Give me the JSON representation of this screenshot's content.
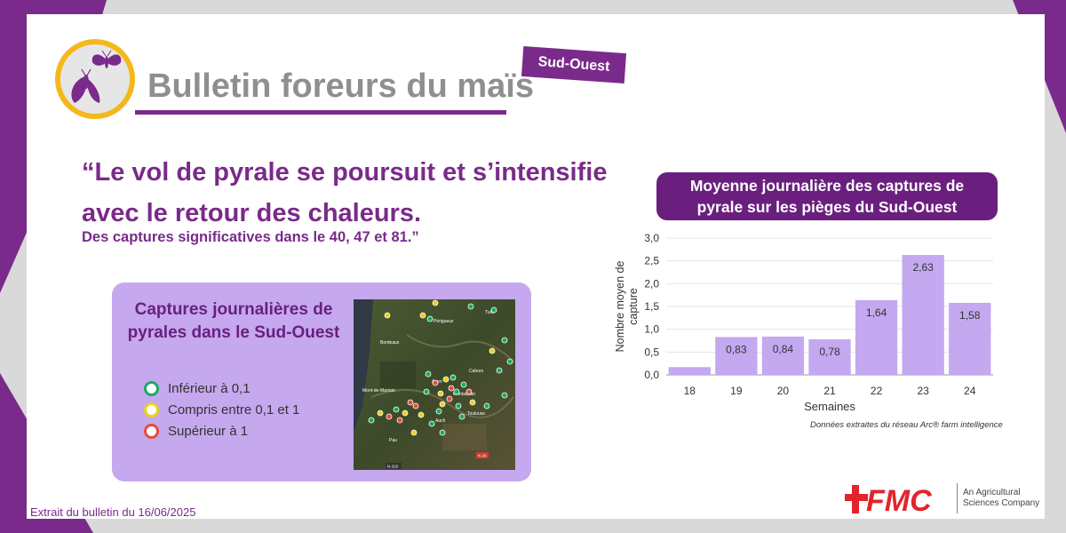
{
  "header": {
    "title": "Bulletin foreurs du maïs",
    "region_badge": "Sud-Ouest"
  },
  "quote": {
    "line1": "“Le vol de pyrale se poursuit et s’intensifie",
    "line2": "avec le retour des chaleurs.",
    "line3": "Des captures significatives dans le 40, 47 et 81.”"
  },
  "map_panel": {
    "title_line1": "Captures journalières de",
    "title_line2": "pyrales dans le Sud-Ouest",
    "legend": [
      {
        "label": "Inférieur à 0,1",
        "color": "#1aaa63"
      },
      {
        "label": "Compris entre 0,1 et 1",
        "color": "#e8d21c"
      },
      {
        "label": "Supérieur à 1",
        "color": "#e84b3c"
      }
    ],
    "map_labels": [
      "Bordeaux",
      "Mont-de-Marsan",
      "Cahors",
      "Périgueux",
      "Tulle",
      "Montauban",
      "Toulouse",
      "Auch",
      "Pau",
      "Agen",
      "N 20",
      "N-320"
    ]
  },
  "chart_data": {
    "type": "bar",
    "title": "Moyenne journalière des captures de pyrale sur les pièges du Sud-Ouest",
    "title_line1": "Moyenne journalière des captures de",
    "title_line2": "pyrale sur les pièges du Sud-Ouest",
    "categories": [
      "18",
      "19",
      "20",
      "21",
      "22",
      "23",
      "24"
    ],
    "values": [
      0.17,
      0.83,
      0.84,
      0.78,
      1.64,
      2.63,
      1.58
    ],
    "data_labels": [
      "",
      "0,83",
      "0,84",
      "0,78",
      "1,64",
      "2,63",
      "1,58"
    ],
    "xlabel": "Semaines",
    "ylabel": "Nombre moyen de capture",
    "ylim": [
      0,
      3
    ],
    "yticks": [
      "0,0",
      "0,5",
      "1,0",
      "1,5",
      "2,0",
      "2,5",
      "3,0"
    ],
    "grid": true,
    "bar_color": "#c4a8f0",
    "source": "Données extraites du réseau Arc® farm intelligence"
  },
  "footer": {
    "extract": "Extrait du bulletin du 16/06/2025",
    "brand": "FMC",
    "tagline_line1": "An Agricultural",
    "tagline_line2": "Sciences Company"
  },
  "colors": {
    "purple": "#7a2a8a",
    "dark_purple": "#6a1f7e",
    "light_purple": "#c5a8ee",
    "gold": "#f5b81c",
    "fmc_red": "#e3242b"
  }
}
